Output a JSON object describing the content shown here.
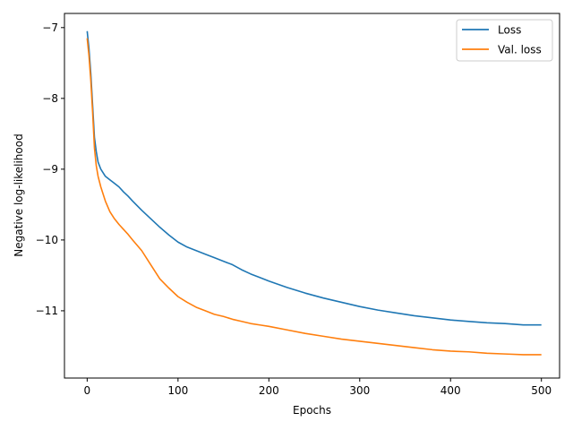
{
  "chart_data": {
    "type": "line",
    "title": "",
    "xlabel": "Epochs",
    "ylabel": "Negative log-likelihood",
    "xlim": [
      -25,
      520
    ],
    "ylim": [
      -11.95,
      -6.8
    ],
    "xticks": [
      0,
      100,
      200,
      300,
      400,
      500
    ],
    "yticks": [
      -7,
      -8,
      -9,
      -10,
      -11
    ],
    "xtick_labels": [
      "0",
      "100",
      "200",
      "300",
      "400",
      "500"
    ],
    "ytick_labels": [
      "−7",
      "−8",
      "−9",
      "−10",
      "−11"
    ],
    "grid": false,
    "legend": "top-right",
    "series": [
      {
        "name": "Loss",
        "color": "#1f77b4",
        "x": [
          0,
          2,
          4,
          6,
          8,
          10,
          12,
          15,
          20,
          25,
          30,
          35,
          40,
          45,
          50,
          60,
          70,
          80,
          90,
          100,
          110,
          120,
          130,
          140,
          150,
          160,
          170,
          180,
          190,
          200,
          220,
          240,
          260,
          280,
          300,
          320,
          340,
          360,
          380,
          400,
          420,
          440,
          460,
          480,
          500
        ],
        "values": [
          -7.05,
          -7.3,
          -7.65,
          -8.1,
          -8.55,
          -8.75,
          -8.9,
          -9.0,
          -9.1,
          -9.15,
          -9.2,
          -9.25,
          -9.32,
          -9.38,
          -9.45,
          -9.58,
          -9.7,
          -9.82,
          -9.93,
          -10.03,
          -10.1,
          -10.15,
          -10.2,
          -10.25,
          -10.3,
          -10.35,
          -10.42,
          -10.48,
          -10.53,
          -10.58,
          -10.67,
          -10.75,
          -10.82,
          -10.88,
          -10.94,
          -10.99,
          -11.03,
          -11.07,
          -11.1,
          -11.13,
          -11.15,
          -11.17,
          -11.18,
          -11.2,
          -11.2
        ]
      },
      {
        "name": "Val. loss",
        "color": "#ff7f0e",
        "x": [
          0,
          2,
          4,
          6,
          8,
          10,
          12,
          15,
          20,
          25,
          30,
          35,
          40,
          45,
          50,
          60,
          70,
          80,
          90,
          100,
          110,
          120,
          130,
          140,
          150,
          160,
          170,
          180,
          190,
          200,
          220,
          240,
          260,
          280,
          300,
          320,
          340,
          360,
          380,
          400,
          420,
          440,
          460,
          480,
          500
        ],
        "values": [
          -7.15,
          -7.4,
          -7.75,
          -8.2,
          -8.7,
          -8.95,
          -9.1,
          -9.25,
          -9.45,
          -9.6,
          -9.7,
          -9.78,
          -9.85,
          -9.92,
          -10.0,
          -10.15,
          -10.35,
          -10.55,
          -10.68,
          -10.8,
          -10.88,
          -10.95,
          -11.0,
          -11.05,
          -11.08,
          -11.12,
          -11.15,
          -11.18,
          -11.2,
          -11.22,
          -11.27,
          -11.32,
          -11.36,
          -11.4,
          -11.43,
          -11.46,
          -11.49,
          -11.52,
          -11.55,
          -11.57,
          -11.58,
          -11.6,
          -11.61,
          -11.62,
          -11.62
        ]
      }
    ]
  }
}
